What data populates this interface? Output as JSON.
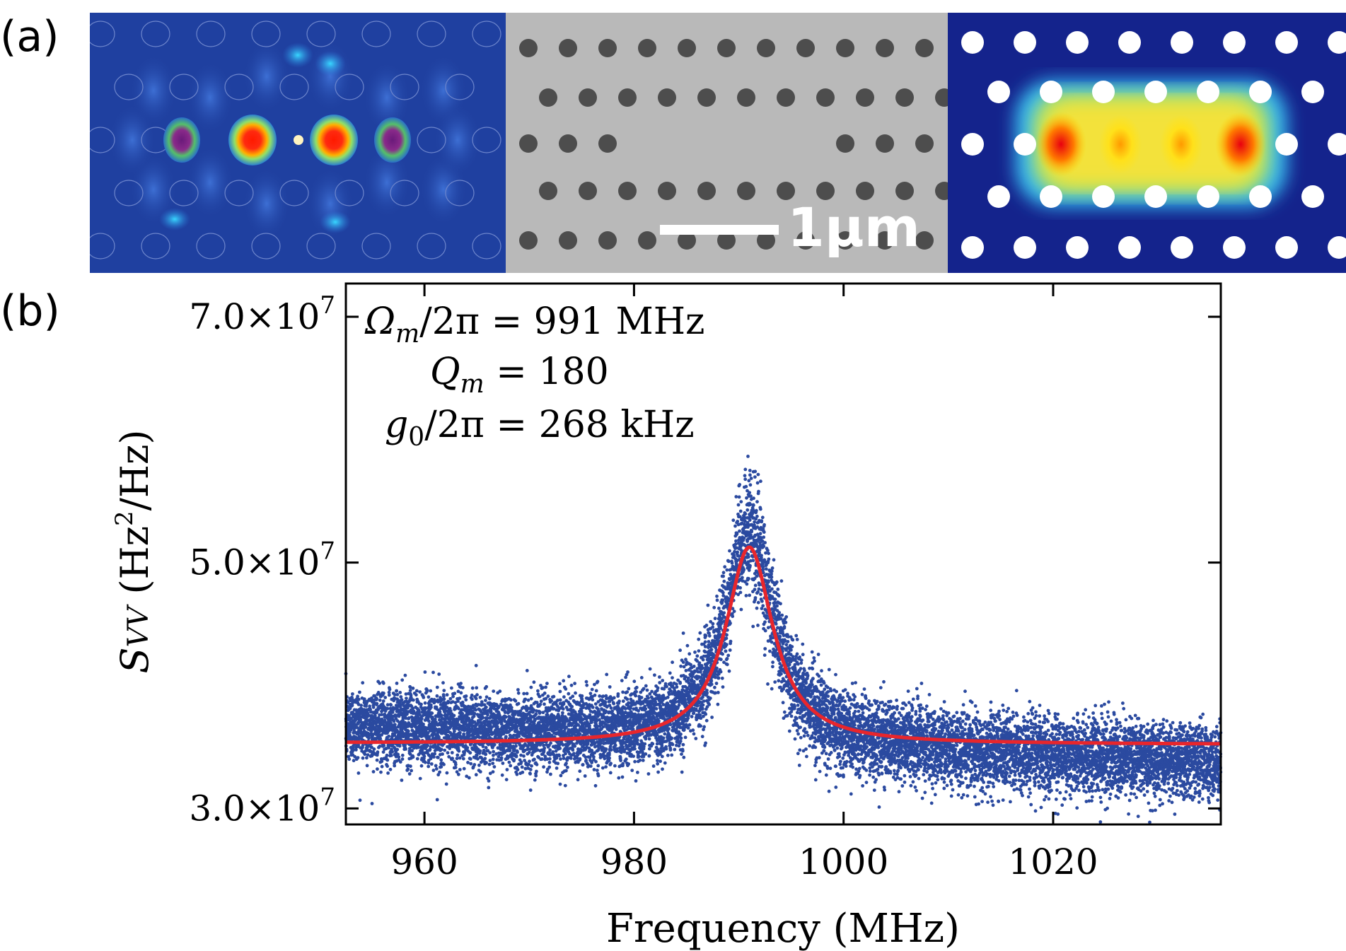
{
  "figure": {
    "panel_a_label": "(a)",
    "panel_b_label": "(b)",
    "scale_bar_label": "1μm"
  },
  "panels_a": [
    {
      "name": "optical-mode-simulation",
      "colormap": "jet"
    },
    {
      "name": "sem-micrograph",
      "colormap": "grayscale"
    },
    {
      "name": "mechanical-mode-simulation",
      "colormap": "jet"
    }
  ],
  "annotations": {
    "omega": "Ω",
    "omega_sub": "m",
    "omega_rest": "/2π = 991 MHz",
    "q": "Q",
    "q_sub": "m",
    "q_rest": " = 180",
    "g": "g",
    "g_sub": "0",
    "g_rest": "/2π = 268 kHz"
  },
  "ylabel_parts": {
    "s": "S",
    "sub": "VV",
    "unit_open": " (Hz",
    "sup": "2",
    "unit_close": "/Hz)"
  },
  "colors": {
    "data_points": "#2b4aa0",
    "fit_line": "#e8262c",
    "sim_dark": "#1f3f9e",
    "sem_gray": "#b9b9b9"
  },
  "chart_data": {
    "type": "scatter",
    "title": "",
    "xlabel": "Frequency (MHz)",
    "ylabel": "SVV (Hz²/Hz)",
    "xlim": [
      952.5,
      1036
    ],
    "ylim": [
      28700000,
      72700000
    ],
    "x_ticks": [
      960,
      980,
      1000,
      1020
    ],
    "x_tick_labels": [
      "960",
      "980",
      "1000",
      "1020"
    ],
    "y_ticks": [
      {
        "value": 30000000,
        "mantissa": "3.0",
        "exp": "7"
      },
      {
        "value": 50000000,
        "mantissa": "5.0",
        "exp": "7"
      },
      {
        "value": 70000000,
        "mantissa": "7.0",
        "exp": "7"
      }
    ],
    "y_tick_prefix": "×10",
    "series": [
      {
        "name": "measured PSD",
        "kind": "scatter",
        "points": 12000,
        "background_start": 36700000,
        "background_end": 33700000,
        "noise_sigma": 1500000
      },
      {
        "name": "Lorentzian fit",
        "kind": "line",
        "center_MHz": 991,
        "Q": 180,
        "peak": 51300000,
        "baseline_start": 35300000,
        "baseline_end": 35200000
      }
    ],
    "grid": false,
    "legend": "none"
  }
}
